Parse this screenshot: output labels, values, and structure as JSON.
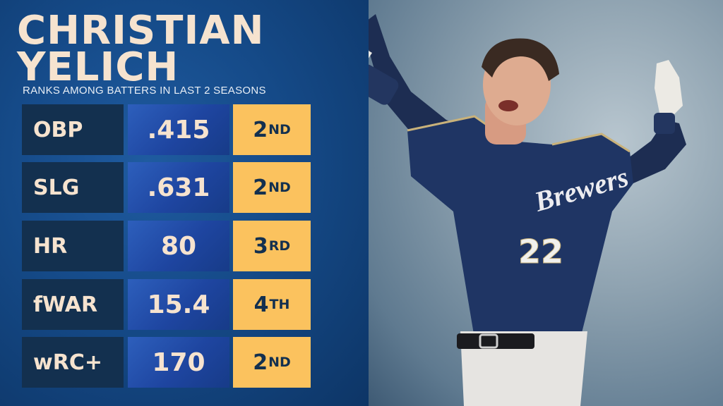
{
  "player": {
    "first_name": "CHRISTIAN",
    "last_name": "YELICH",
    "subtitle": "RANKS AMONG BATTERS IN LAST 2 SEASONS",
    "jersey_script": "Brewers",
    "jersey_number": "22"
  },
  "stats": [
    {
      "label": "OBP",
      "value": ".415",
      "rank": "2",
      "suffix": "ND"
    },
    {
      "label": "SLG",
      "value": ".631",
      "rank": "2",
      "suffix": "ND"
    },
    {
      "label": "HR",
      "value": "80",
      "rank": "3",
      "suffix": "RD"
    },
    {
      "label": "fWAR",
      "value": "15.4",
      "rank": "4",
      "suffix": "TH"
    },
    {
      "label": "wRC+",
      "value": "170",
      "rank": "2",
      "suffix": "ND"
    }
  ],
  "colors": {
    "panel_blue": "#154a88",
    "label_navy": "#13304f",
    "value_blue": "#2d5fbc",
    "rank_gold": "#fbc25e",
    "title_cream": "#f6e3cf"
  }
}
